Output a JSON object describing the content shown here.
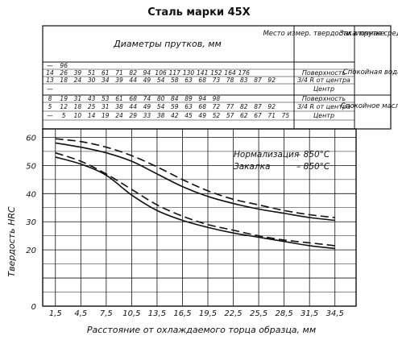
{
  "chart_data": {
    "type": "line",
    "title": "Сталь марки 45Х",
    "xlabel": "Расстояние от охлаждаемого торца образца, мм",
    "ylabel": "Твердость HRC",
    "x_ticks": [
      "1,5",
      "4,5",
      "7,5",
      "10,5",
      "13,5",
      "16,5",
      "19,5",
      "22,5",
      "25,5",
      "28,5",
      "31,5",
      "34,5"
    ],
    "y_ticks": [
      "0",
      "20",
      "30",
      "40",
      "50",
      "60"
    ],
    "xlim": [
      0,
      37
    ],
    "ylim": [
      0,
      63
    ],
    "grid": true,
    "legend": {
      "normalization_label": "Нормализация",
      "normalization_temp": "– 850°С",
      "quench_label": "Закалка",
      "quench_temp": "– 850°С"
    },
    "series": [
      {
        "style": "dashed",
        "x": [
          1.5,
          4.5,
          7.5,
          10.5,
          13.5,
          16.5,
          19.5,
          22.5,
          25.5,
          28.5,
          31.5,
          34.5
        ],
        "y": [
          59.5,
          58.5,
          56.5,
          53.5,
          49.5,
          45.0,
          41.0,
          38.0,
          36.0,
          34.0,
          32.5,
          31.5
        ]
      },
      {
        "style": "solid",
        "x": [
          1.5,
          4.5,
          7.5,
          10.5,
          13.5,
          16.5,
          19.5,
          22.5,
          25.5,
          28.5,
          31.5,
          34.5
        ],
        "y": [
          58.0,
          56.5,
          54.5,
          51.5,
          47.0,
          42.5,
          39.0,
          36.5,
          34.5,
          33.0,
          31.5,
          30.5
        ]
      },
      {
        "style": "dashed",
        "x": [
          1.5,
          4.5,
          7.5,
          10.5,
          13.5,
          16.5,
          19.5,
          22.5,
          25.5,
          28.5,
          31.5,
          34.5
        ],
        "y": [
          54.5,
          51.5,
          47.0,
          41.5,
          36.0,
          32.0,
          29.0,
          27.0,
          25.0,
          23.5,
          22.5,
          21.5
        ]
      },
      {
        "style": "solid",
        "x": [
          1.5,
          4.5,
          7.5,
          10.5,
          13.5,
          16.5,
          19.5,
          22.5,
          25.5,
          28.5,
          31.5,
          34.5
        ],
        "y": [
          53.0,
          50.5,
          46.5,
          39.5,
          34.0,
          30.5,
          28.0,
          26.0,
          24.5,
          23.0,
          21.5,
          20.5
        ]
      }
    ]
  },
  "header_table": {
    "diameters_header": "Диаметры прутков, мм",
    "position_header": "Место измер. твердости в прутке",
    "medium_header": "Закалочная среда",
    "water_rows": [
      {
        "values": [
          "—",
          "96"
        ],
        "position": ""
      },
      {
        "values": [
          "14",
          "26",
          "39",
          "51",
          "61",
          "71",
          "82",
          "94",
          "106",
          "117",
          "130",
          "141",
          "152",
          "164",
          "176"
        ],
        "position": "Поверхность"
      },
      {
        "values": [
          "13",
          "18",
          "24",
          "30",
          "34",
          "39",
          "44",
          "49",
          "54",
          "58",
          "63",
          "68",
          "73",
          "78",
          "83",
          "87",
          "92"
        ],
        "position": "3/4 R от центра"
      },
      {
        "values": [
          "—"
        ],
        "position": "Центр"
      }
    ],
    "water_medium": "Спокойная вода",
    "oil_rows": [
      {
        "values": [
          "8",
          "19",
          "31",
          "43",
          "53",
          "61",
          "68",
          "74",
          "80",
          "84",
          "89",
          "94",
          "98"
        ],
        "position": "Поверхность"
      },
      {
        "values": [
          "5",
          "12",
          "18",
          "25",
          "31",
          "38",
          "44",
          "49",
          "54",
          "59",
          "63",
          "68",
          "72",
          "77",
          "82",
          "87",
          "92"
        ],
        "position": "3/4 R от центра"
      },
      {
        "values": [
          "—",
          "5",
          "10",
          "14",
          "19",
          "24",
          "29",
          "33",
          "38",
          "42",
          "45",
          "49",
          "52",
          "57",
          "62",
          "67",
          "71",
          "75"
        ],
        "position": "Центр"
      }
    ],
    "oil_medium": "Спокойное масло"
  }
}
